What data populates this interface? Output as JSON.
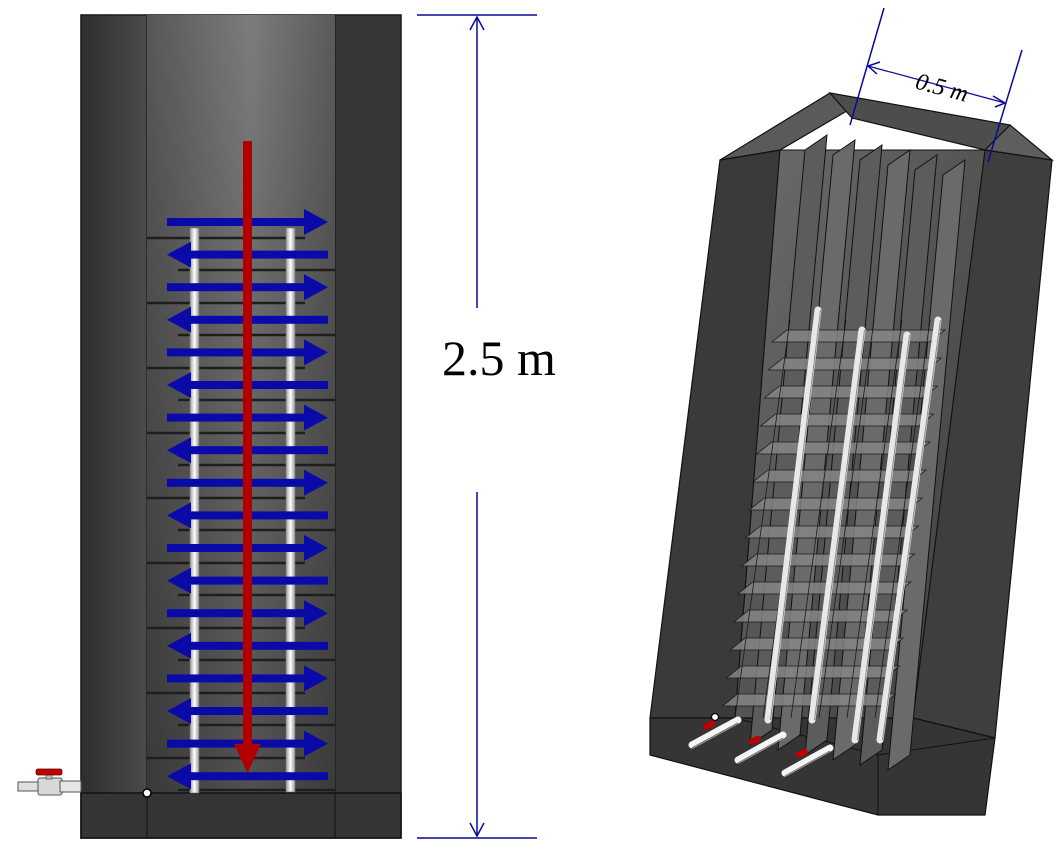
{
  "labels": {
    "height_dimension": "2.5 m",
    "width_dimension": "0.5 m"
  },
  "colors": {
    "tank_outer": "#3a3a3a",
    "tank_inner_light": "#7a7a7a",
    "baffle": "#2a2a2a",
    "pipe": "#f2f2f2",
    "flow_horizontal": "#0a0aa8",
    "flow_vertical": "#b00000",
    "dimension_line": "#0a0a9a",
    "valve_handle": "#c00000"
  },
  "icons": {
    "valve": "valve-icon",
    "flow_arrow_right": "arrow-right-icon",
    "flow_arrow_left": "arrow-left-icon",
    "flow_arrow_down": "arrow-down-icon"
  }
}
